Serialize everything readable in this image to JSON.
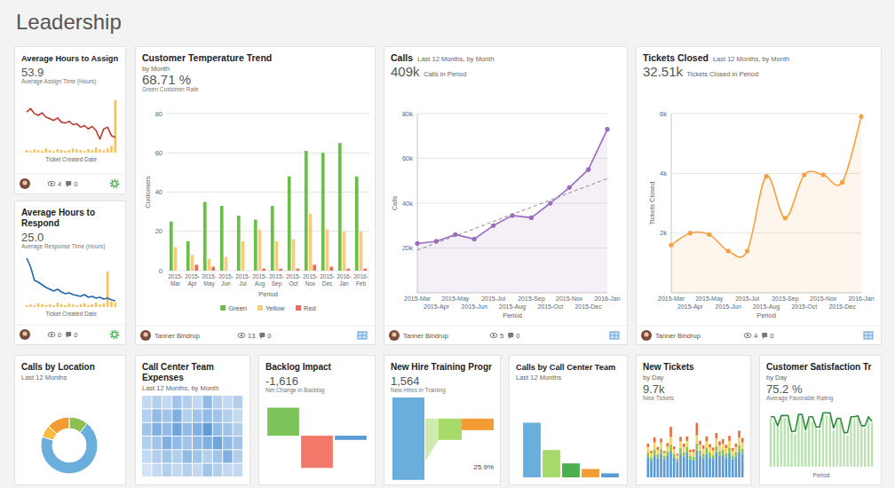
{
  "header": {
    "title": "Leadership"
  },
  "chart_data": [
    {
      "type": "line",
      "title": "Average Hours to Assign",
      "kpi": 53.9,
      "kpi_label": "Average Assign Time (Hours)",
      "xlabel": "Ticket Created Date",
      "ylim": [
        0,
        65
      ],
      "tick_labels": false,
      "series": [
        {
          "type": "bar",
          "color": "#f7c25c",
          "values": [
            3,
            2,
            4,
            3,
            2,
            5,
            3,
            2,
            4,
            3,
            2,
            3,
            5,
            4,
            3,
            2,
            4,
            3,
            6,
            4,
            3,
            5,
            8,
            62
          ]
        },
        {
          "type": "line",
          "color": "#c0392b",
          "values": [
            48,
            52,
            46,
            44,
            47,
            42,
            40,
            38,
            41,
            36,
            35,
            37,
            33,
            34,
            30,
            32,
            28,
            31,
            26,
            16,
            28,
            30,
            20,
            18
          ]
        }
      ],
      "footer": {
        "views": 4,
        "comments": 0
      }
    },
    {
      "type": "line",
      "title": "Average Hours to Respond",
      "kpi": {
        "value": 25,
        "label": "25.0"
      },
      "kpi_label": "Average Response Time (Hours)",
      "xlabel": "Ticket Created Date",
      "ylim": [
        0,
        60
      ],
      "tick_labels": false,
      "series": [
        {
          "type": "bar",
          "color": "#f7c25c",
          "values": [
            2,
            3,
            2,
            4,
            3,
            2,
            3,
            2,
            5,
            3,
            2,
            4,
            3,
            2,
            3,
            4,
            2,
            3,
            5,
            3,
            4,
            40,
            6,
            5
          ]
        },
        {
          "type": "line",
          "color": "#2266b0",
          "values": [
            55,
            45,
            30,
            28,
            25,
            22,
            20,
            18,
            20,
            17,
            15,
            16,
            14,
            13,
            12,
            14,
            11,
            12,
            10,
            11,
            9,
            10,
            8,
            7
          ]
        }
      ],
      "footer": {
        "views": 0,
        "comments": 0
      }
    },
    {
      "type": "bar",
      "title": "Customer Temperature Trend",
      "subtitle": "by Month",
      "kpi": {
        "value": 68.71,
        "label": "68.71 %"
      },
      "kpi_label": "Green Customer Rate",
      "categories": [
        "2015-Mar",
        "2015-Apr",
        "2015-May",
        "2015-Jun",
        "2015-Jul",
        "2015-Aug",
        "2015-Sep",
        "2015-Oct",
        "2015-Nov",
        "2015-Dec",
        "2016-Jan",
        "2016-Feb"
      ],
      "series": [
        {
          "name": "Green",
          "color": "#6abf4b",
          "values": [
            25,
            15,
            35,
            33,
            28,
            26,
            33,
            48,
            61,
            60,
            65,
            48
          ]
        },
        {
          "name": "Yellow",
          "color": "#f7cd7c",
          "values": [
            12,
            8,
            6,
            7,
            15,
            21,
            15,
            16,
            29,
            21,
            20,
            20
          ]
        },
        {
          "name": "Red",
          "color": "#f06a5e",
          "values": [
            0,
            3,
            2,
            0,
            0,
            1,
            1,
            1,
            3,
            2,
            1,
            1
          ]
        }
      ],
      "ylim": [
        0,
        80
      ],
      "yticks": [
        0,
        20,
        40,
        60,
        80
      ],
      "grid": true,
      "legend": "bottom",
      "xlabel": "Period",
      "ylabel": "Customers",
      "footer": {
        "author": "Tanner Bindrup",
        "views": 13,
        "comments": 0
      }
    },
    {
      "type": "line",
      "title": "Calls",
      "subtitle": "Last 12 Months, by Month",
      "kpi": {
        "value": 409000,
        "label": "409k"
      },
      "kpi_label": "Calls in Period",
      "categories": [
        "2015-Mar",
        "2015-Apr",
        "2015-May",
        "2015-Jun",
        "2015-Jul",
        "2015-Aug",
        "2015-Sep",
        "2015-Oct",
        "2015-Nov",
        "2015-Dec",
        "2016-Jan"
      ],
      "series": [
        {
          "type": "area",
          "color": "#9b6bbf",
          "marker": "circle",
          "values": [
            22000,
            23000,
            26000,
            24000,
            30000,
            34500,
            33500,
            40000,
            47000,
            55000,
            73000
          ]
        },
        {
          "type": "line",
          "color": "#888888",
          "line_style": "dashed",
          "values": [
            19000,
            22200,
            25400,
            28600,
            31800,
            35000,
            38200,
            41400,
            44600,
            47800,
            51000
          ]
        }
      ],
      "ylim": [
        0,
        80000
      ],
      "yticks": [
        {
          "value": 20000,
          "label": "20k"
        },
        {
          "value": 40000,
          "label": "40k"
        },
        {
          "value": 60000,
          "label": "60k"
        },
        {
          "value": 80000,
          "label": "80k"
        }
      ],
      "grid": true,
      "xlabel": "Period",
      "ylabel": "Calls",
      "footer": {
        "author": "Tanner Bindrup",
        "views": 5,
        "comments": 0
      }
    },
    {
      "type": "line",
      "title": "Tickets Closed",
      "subtitle": "Last 12 Months, by Month",
      "kpi": {
        "value": 32510,
        "label": "32.51k"
      },
      "kpi_label": "Tickets Closed in Period",
      "categories": [
        "2015-Mar",
        "2015-Apr",
        "2015-May",
        "2015-Jun",
        "2015-Jul",
        "2015-Aug",
        "2015-Sep",
        "2015-Oct",
        "2015-Nov",
        "2015-Dec",
        "2016-Jan"
      ],
      "series": [
        {
          "type": "area",
          "color": "#f5a142",
          "marker": "circle",
          "line_style": "smooth",
          "values": [
            1600,
            2000,
            1950,
            1400,
            1400,
            3900,
            2500,
            3950,
            3950,
            3700,
            5900
          ]
        }
      ],
      "ylim": [
        0,
        6000
      ],
      "yticks": [
        {
          "value": 2000,
          "label": "2k"
        },
        {
          "value": 4000,
          "label": "4k"
        },
        {
          "value": 6000,
          "label": "6k"
        }
      ],
      "grid": true,
      "xlabel": "Period",
      "ylabel": "Tickets Closed",
      "footer": {
        "author": "Tanner Bindrup",
        "views": 4,
        "comments": 0
      }
    },
    {
      "type": "pie",
      "title": "Calls by Location",
      "subtitle": "Last 12 Months",
      "values": [
        11,
        69,
        7,
        13
      ],
      "colors": [
        "#8cc152",
        "#6aaedc",
        "#f6bb42",
        "#f39c34"
      ]
    },
    {
      "type": "heatmap",
      "title": "Call Center Team Expenses",
      "subtitle": "Last 12 Months, by Month",
      "cells": [
        [
          2,
          3,
          2,
          4,
          3,
          2,
          5,
          3,
          2,
          3
        ],
        [
          3,
          5,
          4,
          6,
          3,
          4,
          5,
          4,
          3,
          2
        ],
        [
          4,
          6,
          5,
          7,
          5,
          6,
          8,
          5,
          4,
          3
        ],
        [
          3,
          4,
          6,
          5,
          4,
          5,
          6,
          7,
          5,
          4
        ],
        [
          2,
          3,
          4,
          3,
          5,
          4,
          3,
          4,
          6,
          3
        ],
        [
          1,
          2,
          3,
          2,
          3,
          2,
          4,
          3,
          2,
          2
        ]
      ],
      "color_range": [
        0,
        10
      ]
    },
    {
      "type": "bar",
      "title": "Backlog Impact",
      "kpi": {
        "value": -1616,
        "label": "-1,616"
      },
      "kpi_label": "Net Change in Backlog",
      "values": [
        10800,
        -12416,
        -1616
      ],
      "colors": [
        "#7cc35a",
        "#f2786a",
        "#5b9bd5"
      ],
      "ylim": [
        -14000,
        12000
      ],
      "tick_labels": false
    },
    {
      "type": "funnel",
      "title": "New Hire Training Progr",
      "kpi": {
        "value": 1564,
        "label": "1,564"
      },
      "kpi_label": "New Hires in Training",
      "values": [
        1564,
        405,
        220
      ],
      "colors": [
        "#6aaedc",
        "#a6d96a",
        "#f39c34"
      ],
      "ylim": [
        0,
        1600
      ],
      "annotations": [
        {
          "value": 25.9,
          "label": "25.9%"
        }
      ]
    },
    {
      "type": "bar",
      "title": "Calls by Call Center Team",
      "subtitle": "Last 12 Months",
      "values": [
        176000,
        88000,
        45000,
        27000,
        13000
      ],
      "colors": [
        "#6aaedc",
        "#a6d96a",
        "#4caf50",
        "#f39c34",
        "#5b9bd5"
      ],
      "ylim": [
        0,
        200000
      ],
      "tick_labels": false
    },
    {
      "type": "bar",
      "stacked": true,
      "title": "New Tickets",
      "subtitle": "by Day",
      "kpi": {
        "value": 9700,
        "label": "9.7k"
      },
      "kpi_label": "New Tickets",
      "series": [
        {
          "color": "#5b9bd5",
          "values": [
            180,
            150,
            200,
            170,
            210,
            160,
            190,
            230,
            175,
            140,
            205,
            185,
            220,
            160,
            150,
            240,
            195,
            170,
            210,
            180,
            165,
            225,
            190,
            200,
            175,
            215,
            160,
            185,
            230,
            205
          ]
        },
        {
          "color": "#8cc152",
          "values": [
            40,
            30,
            50,
            35,
            45,
            30,
            40,
            60,
            35,
            25,
            55,
            40,
            50,
            30,
            35,
            60,
            45,
            40,
            50,
            40,
            35,
            55,
            45,
            45,
            40,
            50,
            35,
            40,
            55,
            50
          ]
        },
        {
          "color": "#f6d55c",
          "values": [
            50,
            35,
            60,
            40,
            55,
            30,
            45,
            70,
            40,
            30,
            60,
            45,
            55,
            35,
            40,
            75,
            50,
            45,
            60,
            45,
            40,
            65,
            50,
            55,
            45,
            60,
            40,
            45,
            70,
            55
          ]
        },
        {
          "color": "#ed6a3a",
          "values": [
            30,
            20,
            45,
            25,
            35,
            15,
            30,
            90,
            25,
            15,
            40,
            30,
            40,
            20,
            25,
            110,
            35,
            30,
            45,
            30,
            25,
            50,
            35,
            40,
            30,
            45,
            25,
            30,
            60,
            40
          ]
        }
      ],
      "ylim": [
        0,
        600
      ],
      "tick_labels": false
    },
    {
      "type": "line",
      "title": "Customer Satisfaction Tr",
      "subtitle": "by Day",
      "kpi": {
        "value": 75.2,
        "label": "75.2 %"
      },
      "kpi_label": "Average Favorable Rating",
      "xlabel": "Period",
      "ylim": [
        0,
        100
      ],
      "tick_labels": false,
      "series": [
        {
          "type": "bar",
          "color": "#b9e2b0",
          "values": [
            85,
            80,
            70,
            88,
            86,
            84,
            60,
            58,
            90,
            88,
            62,
            85,
            80,
            68,
            66,
            92,
            90,
            88,
            64,
            82,
            80,
            58,
            55,
            86,
            84,
            88,
            70,
            68,
            85,
            78
          ]
        },
        {
          "type": "line",
          "color": "#2e8b3a",
          "values": [
            88,
            88,
            72,
            90,
            90,
            90,
            62,
            62,
            92,
            92,
            65,
            88,
            88,
            70,
            70,
            95,
            95,
            95,
            68,
            85,
            85,
            60,
            60,
            88,
            88,
            90,
            72,
            72,
            88,
            80
          ]
        }
      ]
    }
  ]
}
